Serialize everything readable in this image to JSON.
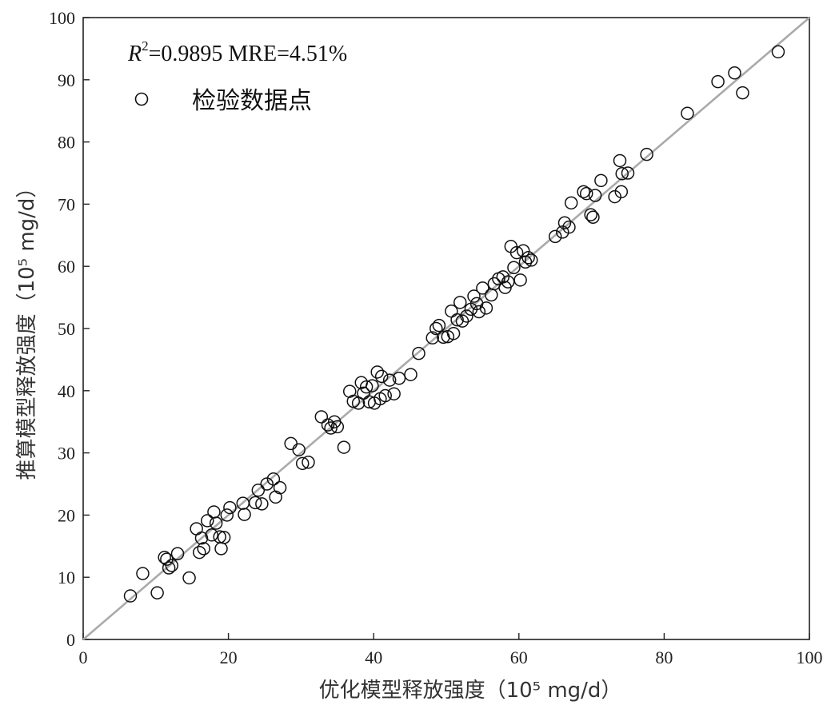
{
  "chart_data": {
    "type": "scatter",
    "xlabel": "优化模型释放强度（10⁵ mg/d）",
    "ylabel": "推算模型释放强度（10⁵ mg/d）",
    "xlim": [
      0,
      100
    ],
    "ylim": [
      0,
      100
    ],
    "xticks": [
      0,
      20,
      40,
      60,
      80,
      100
    ],
    "yticks": [
      0,
      10,
      20,
      30,
      40,
      50,
      60,
      70,
      80,
      90,
      100
    ],
    "grid": false,
    "legend_position": "top-left",
    "annotation": {
      "r_symbol": "R",
      "r_power": "2",
      "text": "=0.9895 MRE=4.51%"
    },
    "fit_line": {
      "x": [
        0,
        100
      ],
      "y": [
        0,
        100
      ],
      "color": "#aaaaaa"
    },
    "series": [
      {
        "name": "检验数据点",
        "marker": "open-circle",
        "color": "#111111",
        "x": [
          6.5,
          8.2,
          10.2,
          11.2,
          11.5,
          11.8,
          12.2,
          13.0,
          14.6,
          15.6,
          16.0,
          16.3,
          16.6,
          17.1,
          17.7,
          18.0,
          18.3,
          18.8,
          19.0,
          19.4,
          19.8,
          20.2,
          22.0,
          22.2,
          23.7,
          24.1,
          24.6,
          25.3,
          26.2,
          26.5,
          27.1,
          28.6,
          29.7,
          30.2,
          31.0,
          32.8,
          33.7,
          34.1,
          34.6,
          35.0,
          35.9,
          36.7,
          37.2,
          37.9,
          38.3,
          38.6,
          39.0,
          39.4,
          39.8,
          40.1,
          40.5,
          40.9,
          41.1,
          41.6,
          42.2,
          42.8,
          43.5,
          45.1,
          46.2,
          48.1,
          48.6,
          49.0,
          49.6,
          50.2,
          50.7,
          51.0,
          51.5,
          51.9,
          52.2,
          52.8,
          53.4,
          53.8,
          54.2,
          54.5,
          55.0,
          55.5,
          56.2,
          56.6,
          57.2,
          57.8,
          58.1,
          58.5,
          58.9,
          59.3,
          59.7,
          60.2,
          60.6,
          60.9,
          61.3,
          61.7,
          65.0,
          66.0,
          66.3,
          66.9,
          67.2,
          68.9,
          69.3,
          69.9,
          70.2,
          70.5,
          71.3,
          73.2,
          73.9,
          74.1,
          74.2,
          75.0,
          77.6,
          83.2,
          87.4,
          89.7,
          90.8,
          95.7
        ],
        "y": [
          7.0,
          10.6,
          7.5,
          13.2,
          12.9,
          11.5,
          11.9,
          13.8,
          9.9,
          17.8,
          14.0,
          16.3,
          14.6,
          19.1,
          16.8,
          20.5,
          18.7,
          16.5,
          14.6,
          16.4,
          20.0,
          21.2,
          21.9,
          20.1,
          22.0,
          24.0,
          21.8,
          25.0,
          25.8,
          22.9,
          24.4,
          31.5,
          30.5,
          28.3,
          28.5,
          35.8,
          34.5,
          34.0,
          35.0,
          34.2,
          30.9,
          39.9,
          38.3,
          38.0,
          41.3,
          39.6,
          40.6,
          38.2,
          40.8,
          38.0,
          43.0,
          38.7,
          42.3,
          39.2,
          41.7,
          39.5,
          42.0,
          42.6,
          46.0,
          48.5,
          50.0,
          50.5,
          48.6,
          48.7,
          52.8,
          49.2,
          51.4,
          54.2,
          51.2,
          52.0,
          53.1,
          55.2,
          54.0,
          52.7,
          56.5,
          53.3,
          55.4,
          57.2,
          58.0,
          58.3,
          56.6,
          57.5,
          63.2,
          59.8,
          62.2,
          57.8,
          62.5,
          60.7,
          61.4,
          61.0,
          64.8,
          65.5,
          67.0,
          66.3,
          70.2,
          72.0,
          71.7,
          68.3,
          67.9,
          71.4,
          73.8,
          71.2,
          77.0,
          72.0,
          74.9,
          75.0,
          78.0,
          84.6,
          89.7,
          91.1,
          87.9,
          94.5
        ]
      }
    ]
  }
}
